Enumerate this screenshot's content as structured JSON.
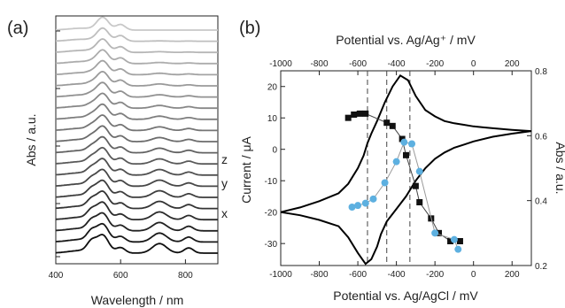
{
  "chart_data": [
    {
      "panel_label": "(a)",
      "type": "line",
      "xlabel": "Wavelength / nm",
      "ylabel": "Abs / a.u.",
      "xlim": [
        400,
        900
      ],
      "xticks": [
        400,
        600,
        800
      ],
      "curve_labels": [
        "z",
        "y",
        "x"
      ],
      "stack_count": 21,
      "peaks_nm": [
        510,
        545,
        600,
        720,
        810
      ],
      "grid": false
    },
    {
      "panel_label": "(b)",
      "type": "line",
      "xlabel": "Potential vs. Ag/AgCl / mV",
      "x2label": "Potential vs. Ag/Ag⁺ / mV",
      "ylabel": "Current / μA",
      "y2label": "Abs / a.u.",
      "xlim": [
        -1000,
        300
      ],
      "xticks": [
        -1000,
        -800,
        -600,
        -400,
        -200,
        0,
        200
      ],
      "x2lim": [
        -1000,
        300
      ],
      "x2ticks": [
        -1000,
        -800,
        -600,
        -400,
        -200,
        0,
        200
      ],
      "ylim": [
        -37,
        25
      ],
      "yticks": [
        -30,
        -20,
        -10,
        0,
        10,
        20
      ],
      "y2lim": [
        0.2,
        0.8
      ],
      "y2ticks": [
        0.2,
        0.4,
        0.6,
        0.8
      ],
      "vlines": [
        -550,
        -450,
        -330
      ],
      "grid": false,
      "series": [
        {
          "style": "cv",
          "color": "#000000",
          "axis": "left",
          "forward": {
            "x": [
              -1000,
              -900,
              -800,
              -700,
              -650,
              -600,
              -570,
              -550,
              -530,
              -500,
              -460,
              -420,
              -380,
              -340,
              -300,
              -250,
              -200,
              -150,
              -100,
              -50,
              0,
              50,
              100,
              200,
              300
            ],
            "y": [
              -20,
              -18.5,
              -16.5,
              -14,
              -11,
              -6,
              -2,
              2,
              5,
              9,
              15,
              20,
              23.5,
              22,
              17,
              12.5,
              10.5,
              9,
              8.3,
              7.8,
              7.3,
              7,
              6.7,
              6.2,
              5.8
            ]
          },
          "reverse": {
            "x": [
              300,
              200,
              100,
              0,
              -50,
              -100,
              -150,
              -200,
              -250,
              -300,
              -350,
              -400,
              -450,
              -480,
              -500,
              -530,
              -560,
              -600,
              -650,
              -700,
              -800,
              -900,
              -1000
            ],
            "y": [
              5.8,
              5,
              4,
              2.5,
              1.5,
              0.5,
              -1,
              -3,
              -6,
              -10,
              -15,
              -19,
              -23,
              -27,
              -31,
              -35,
              -36.5,
              -33,
              -28,
              -24.5,
              -22.5,
              -21,
              -20
            ]
          }
        },
        {
          "style": "markers-square",
          "color": "#111111",
          "axis": "right",
          "x": [
            -650,
            -620,
            -590,
            -560,
            -450,
            -420,
            -370,
            -350,
            -300,
            -280,
            -220,
            -180,
            -120,
            -70
          ],
          "y": [
            0.655,
            0.665,
            0.668,
            0.668,
            0.64,
            0.63,
            0.59,
            0.54,
            0.445,
            0.395,
            0.345,
            0.3,
            0.275,
            0.275
          ]
        },
        {
          "style": "markers-circle",
          "color": "#5db0e0",
          "axis": "right",
          "x": [
            -630,
            -600,
            -560,
            -520,
            -460,
            -400,
            -360,
            -320,
            -280,
            -200,
            -100,
            -80
          ],
          "y": [
            0.38,
            0.385,
            0.392,
            0.405,
            0.455,
            0.52,
            0.58,
            0.575,
            0.49,
            0.3,
            0.28,
            0.25
          ]
        }
      ]
    }
  ]
}
